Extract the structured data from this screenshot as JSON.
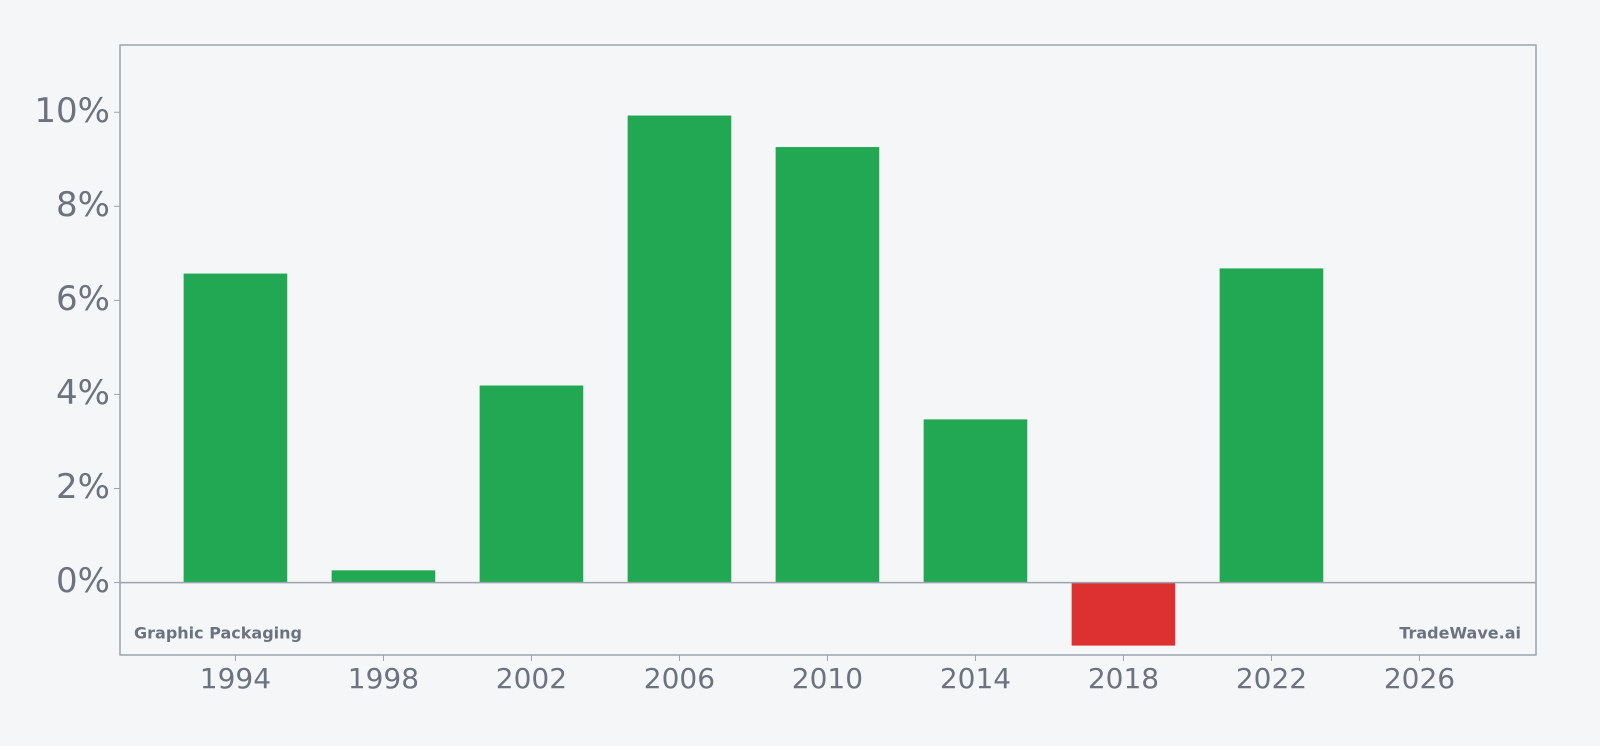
{
  "chart_data": {
    "type": "bar",
    "x": [
      1994,
      1998,
      2002,
      2006,
      2010,
      2014,
      2018,
      2022
    ],
    "values": [
      6.57,
      0.26,
      4.19,
      9.93,
      9.26,
      3.47,
      -1.34,
      6.68
    ],
    "colors": [
      "#22a853",
      "#22a853",
      "#22a853",
      "#22a853",
      "#22a853",
      "#22a853",
      "#dd3030",
      "#22a853"
    ],
    "xlim": [
      1990.88,
      2029.15
    ],
    "xticks": [
      1994,
      1998,
      2002,
      2006,
      2010,
      2014,
      2018,
      2022,
      2026
    ],
    "ylim": [
      -1.54,
      11.43
    ],
    "yticks": [
      {
        "value": 0,
        "label": "0%"
      },
      {
        "value": 2,
        "label": "2%"
      },
      {
        "value": 4,
        "label": "4%"
      },
      {
        "value": 6,
        "label": "6%"
      },
      {
        "value": 8,
        "label": "8%"
      },
      {
        "value": 10,
        "label": "10%"
      }
    ],
    "annotations": [
      "Graphic Packaging",
      "TradeWave.ai"
    ]
  }
}
